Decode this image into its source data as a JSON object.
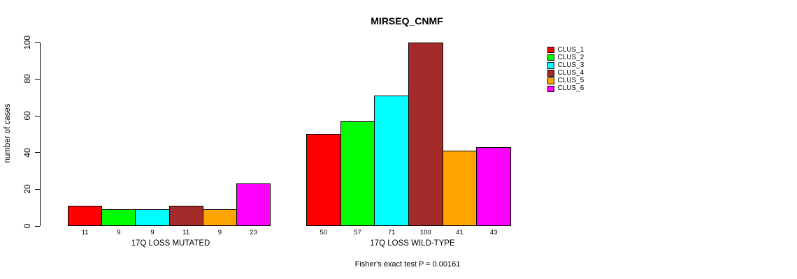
{
  "chart_data": {
    "type": "bar",
    "title": "MIRSEQ_CNMF",
    "ylabel": "number of cases",
    "ylim": [
      0,
      100
    ],
    "yticks": [
      0,
      20,
      40,
      60,
      80,
      100
    ],
    "grid": false,
    "legend_position": "right",
    "categories": [
      "17Q LOSS MUTATED",
      "17Q LOSS WILD-TYPE"
    ],
    "series": [
      {
        "name": "CLUS_1",
        "color": "#FF0000",
        "values": [
          11,
          50
        ]
      },
      {
        "name": "CLUS_2",
        "color": "#00FF00",
        "values": [
          9,
          57
        ]
      },
      {
        "name": "CLUS_3",
        "color": "#00FFFF",
        "values": [
          9,
          71
        ]
      },
      {
        "name": "CLUS_4",
        "color": "#A52A2A",
        "values": [
          11,
          100
        ]
      },
      {
        "name": "CLUS_5",
        "color": "#FFA500",
        "values": [
          9,
          41
        ]
      },
      {
        "name": "CLUS_6",
        "color": "#FF00FF",
        "values": [
          23,
          43
        ]
      }
    ],
    "bar_value_labels": [
      [
        11,
        9,
        9,
        11,
        9,
        23
      ],
      [
        50,
        57,
        71,
        100,
        41,
        43
      ]
    ],
    "annotation": "Fisher's exact test P = 0.00161",
    "axis_color": "#000000",
    "background": "#FFFFFF"
  }
}
